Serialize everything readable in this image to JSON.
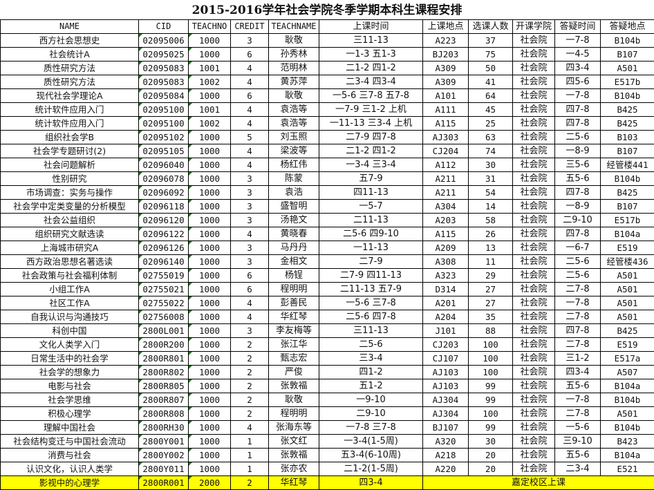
{
  "title": "2015-2016学年社会学院冬季学期本科生课程安排",
  "columns": [
    "NAME",
    "CID",
    "TEACHNO",
    "CREDIT",
    "TEACHNAME",
    "上课时间",
    "上课地点",
    "选课人数",
    "开课学院",
    "答疑时间",
    "答疑地点"
  ],
  "highlight_color": "#ffff00",
  "rows": [
    [
      "西方社会思想史",
      "02095006",
      "1000",
      "3",
      "耿敬",
      "三11-13",
      "A223",
      "37",
      "社会院",
      "一7-8",
      "B104b"
    ],
    [
      "社会统计A",
      "02095025",
      "1000",
      "6",
      "孙秀林",
      "一1-3 五1-3",
      "BJ203",
      "75",
      "社会院",
      "一4-5",
      "B107"
    ],
    [
      "质性研究方法",
      "02095083",
      "1001",
      "4",
      "范明林",
      "二1-2 四1-2",
      "A309",
      "50",
      "社会院",
      "四3-4",
      "A501"
    ],
    [
      "质性研究方法",
      "02095083",
      "1002",
      "4",
      "黄苏萍",
      "二3-4 四3-4",
      "A309",
      "41",
      "社会院",
      "四5-6",
      "E517b"
    ],
    [
      "现代社会学理论A",
      "02095084",
      "1000",
      "6",
      "耿敬",
      "一5-6 三7-8 五7-8",
      "A101",
      "64",
      "社会院",
      "一7-8",
      "B104b"
    ],
    [
      "统计软件应用入门",
      "02095100",
      "1001",
      "4",
      "袁浩等",
      "一7-9 三1-2 上机",
      "A111",
      "45",
      "社会院",
      "四7-8",
      "B425"
    ],
    [
      "统计软件应用入门",
      "02095100",
      "1002",
      "4",
      "袁浩等",
      "一11-13 三3-4 上机",
      "A115",
      "25",
      "社会院",
      "四7-8",
      "B425"
    ],
    [
      "组织社会学B",
      "02095102",
      "1000",
      "5",
      "刘玉照",
      "二7-9 四7-8",
      "AJ303",
      "63",
      "社会院",
      "二5-6",
      "B103"
    ],
    [
      "社会学专题研讨(2)",
      "02095105",
      "1000",
      "4",
      "梁波等",
      "二1-2 四1-2",
      "CJ204",
      "74",
      "社会院",
      "一8-9",
      "B107"
    ],
    [
      "社会问题解析",
      "02096040",
      "1000",
      "4",
      "杨红伟",
      "一3-4 三3-4",
      "A112",
      "30",
      "社会院",
      "三5-6",
      "经管楼441"
    ],
    [
      "性别研究",
      "02096078",
      "1000",
      "3",
      "陈蒙",
      "五7-9",
      "A211",
      "31",
      "社会院",
      "五5-6",
      "B104b"
    ],
    [
      "市场调查：实务与操作",
      "02096092",
      "1000",
      "3",
      "袁浩",
      "四11-13",
      "A211",
      "54",
      "社会院",
      "四7-8",
      "B425"
    ],
    [
      "社会学中定类变量的分析模型",
      "02096118",
      "1000",
      "3",
      "盛智明",
      "一5-7",
      "A304",
      "14",
      "社会院",
      "一8-9",
      "B107"
    ],
    [
      "社会公益组织",
      "02096120",
      "1000",
      "3",
      "汤艳文",
      "二11-13",
      "A203",
      "58",
      "社会院",
      "二9-10",
      "E517b"
    ],
    [
      "组织研究文献选读",
      "02096122",
      "1000",
      "4",
      "黄晓春",
      "二5-6 四9-10",
      "A115",
      "26",
      "社会院",
      "四7-8",
      "B104a"
    ],
    [
      "上海城市研究A",
      "02096126",
      "1000",
      "3",
      "马丹丹",
      "一11-13",
      "A209",
      "13",
      "社会院",
      "一6-7",
      "E519"
    ],
    [
      "西方政治思想名著选读",
      "02096140",
      "1000",
      "3",
      "金相文",
      "二7-9",
      "A308",
      "11",
      "社会院",
      "二5-6",
      "经管楼436"
    ],
    [
      "社会政策与社会福利体制",
      "02755019",
      "1000",
      "6",
      "杨锃",
      "二7-9 四11-13",
      "A323",
      "29",
      "社会院",
      "二5-6",
      "A501"
    ],
    [
      "小组工作A",
      "02755021",
      "1000",
      "6",
      "程明明",
      "二11-13 五7-9",
      "D314",
      "27",
      "社会院",
      "二7-8",
      "A501"
    ],
    [
      "社区工作A",
      "02755022",
      "1000",
      "4",
      "彭善民",
      "一5-6 三7-8",
      "A201",
      "27",
      "社会院",
      "一7-8",
      "A501"
    ],
    [
      "自我认识与沟通技巧",
      "02756008",
      "1000",
      "4",
      "华红琴",
      "二5-6 四7-8",
      "A204",
      "35",
      "社会院",
      "二7-8",
      "A501"
    ],
    [
      "科创中国",
      "2800L001",
      "1000",
      "3",
      "李友梅等",
      "三11-13",
      "J101",
      "88",
      "社会院",
      "四7-8",
      "B425"
    ],
    [
      "文化人类学入门",
      "2800R200",
      "1000",
      "2",
      "张江华",
      "二5-6",
      "CJ203",
      "100",
      "社会院",
      "二7-8",
      "E519"
    ],
    [
      "日常生活中的社会学",
      "2800R801",
      "1000",
      "2",
      "甄志宏",
      "三3-4",
      "CJ107",
      "100",
      "社会院",
      "三1-2",
      "E517a"
    ],
    [
      "社会学的想象力",
      "2800R802",
      "1000",
      "2",
      "严俊",
      "四1-2",
      "AJ103",
      "100",
      "社会院",
      "四3-4",
      "A507"
    ],
    [
      "电影与社会",
      "2800R805",
      "1000",
      "2",
      "张敦福",
      "五1-2",
      "AJ103",
      "99",
      "社会院",
      "五5-6",
      "B104a"
    ],
    [
      "社会学思维",
      "2800R807",
      "1000",
      "2",
      "耿敬",
      "一9-10",
      "AJ304",
      "99",
      "社会院",
      "一7-8",
      "B104b"
    ],
    [
      "积极心理学",
      "2800R808",
      "1000",
      "2",
      "程明明",
      "二9-10",
      "AJ304",
      "100",
      "社会院",
      "二7-8",
      "A501"
    ],
    [
      "理解中国社会",
      "2800RH30",
      "1000",
      "4",
      "张海东等",
      "一7-8 三7-8",
      "BJ107",
      "99",
      "社会院",
      "一5-6",
      "B104b"
    ],
    [
      "社会结构变迁与中国社会流动",
      "2800Y001",
      "1000",
      "1",
      "张文红",
      "一3-4(1-5周)",
      "A320",
      "30",
      "社会院",
      "三9-10",
      "B423"
    ],
    [
      "消费与社会",
      "2800Y002",
      "1000",
      "1",
      "张敦福",
      "五3-4(6-10周)",
      "A218",
      "20",
      "社会院",
      "五5-6",
      "B104a"
    ],
    [
      "认识文化，认识人类学",
      "2800Y011",
      "1000",
      "1",
      "张亦农",
      "二1-2(1-5周)",
      "A220",
      "20",
      "社会院",
      "二3-4",
      "E521"
    ]
  ],
  "highlighted_row": {
    "name": "影视中的心理学",
    "cid": "2800R001",
    "teachno": "2000",
    "credit": "2",
    "teachname": "华红琴",
    "time": "四3-4",
    "note": "嘉定校区上课"
  }
}
